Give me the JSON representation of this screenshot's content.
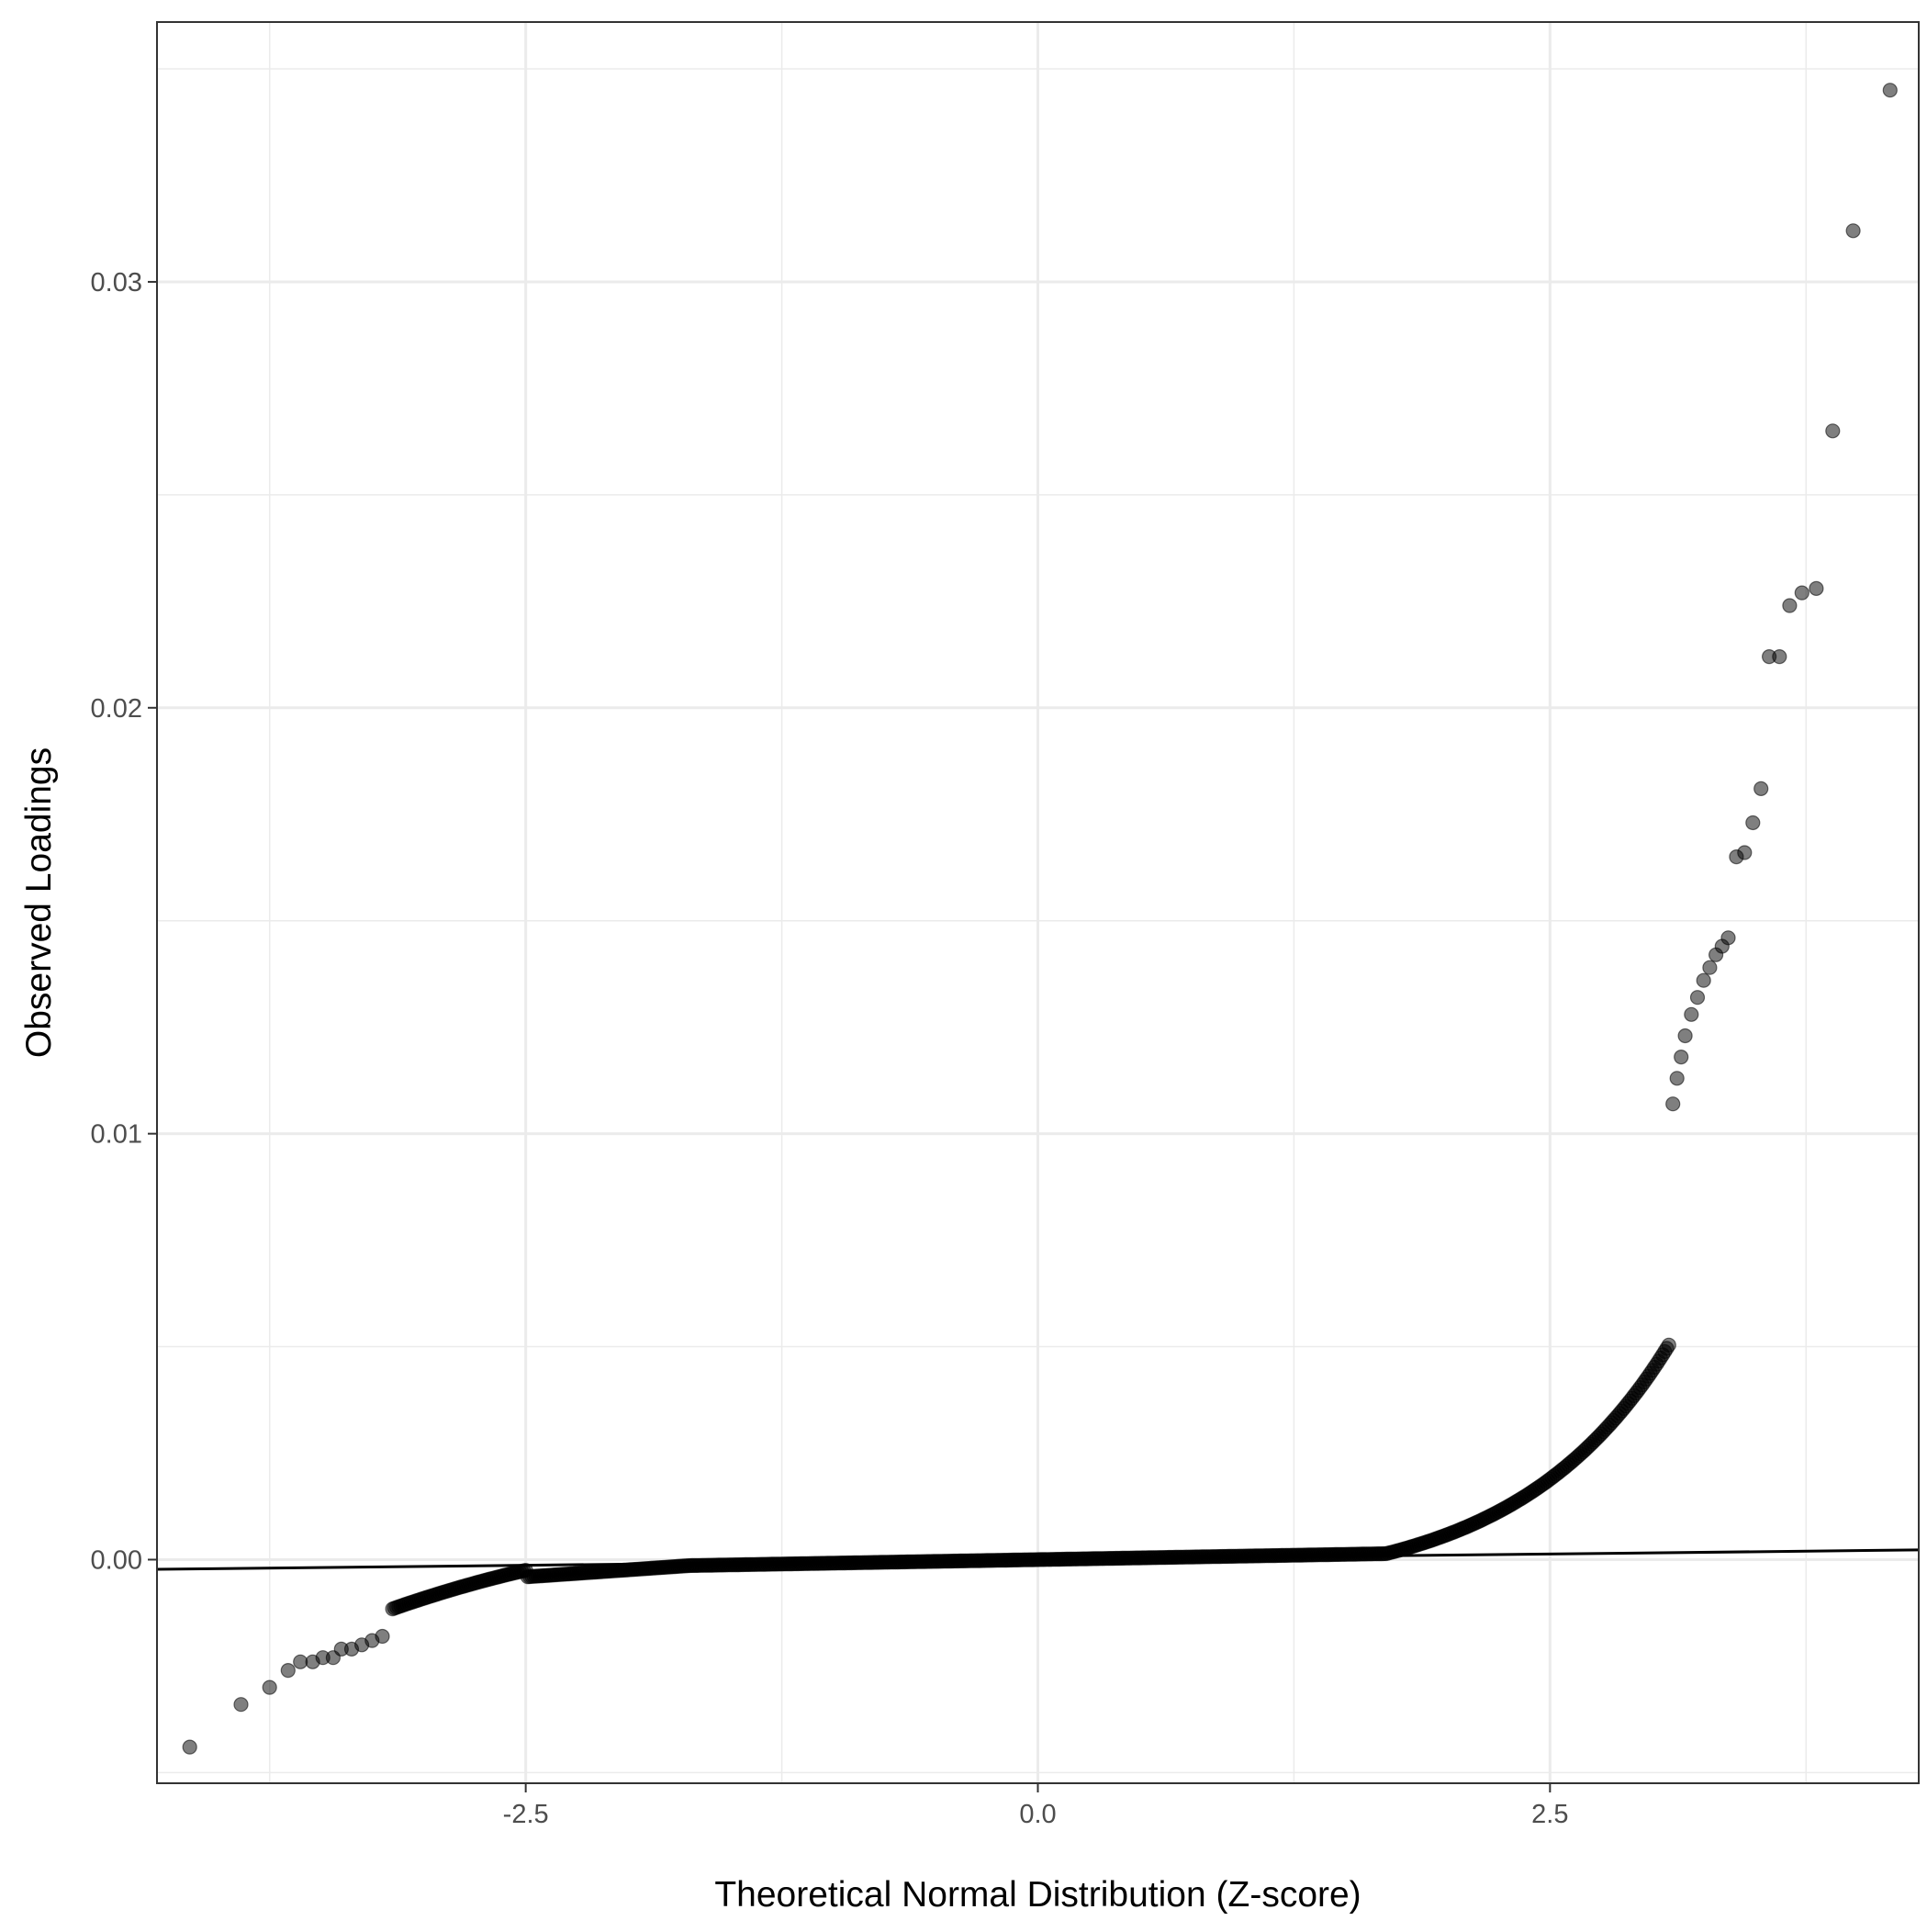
{
  "chart_data": {
    "type": "scatter",
    "title": "",
    "xlabel": "Theoretical Normal Distribution (Z-score)",
    "ylabel": "Observed Loadings",
    "xlim": [
      -4.3,
      4.3
    ],
    "ylim": [
      -0.00525,
      0.0361
    ],
    "x_ticks": [
      -2.5,
      0.0,
      2.5
    ],
    "x_tick_labels": [
      "-2.5",
      "0.0",
      "2.5"
    ],
    "y_ticks": [
      0.0,
      0.01,
      0.02,
      0.03
    ],
    "y_tick_labels": [
      "0.00",
      "0.01",
      "0.02",
      "0.03"
    ],
    "grid": true,
    "theme": "bw",
    "point_color": "#000000",
    "point_opacity": 0.5,
    "line_color": "#000000",
    "reference_line": {
      "intercept": 0.0,
      "slope": 5.3e-05
    },
    "tail_points": [
      {
        "x": -4.14,
        "y": -0.0044
      },
      {
        "x": -3.89,
        "y": -0.0034
      },
      {
        "x": -3.75,
        "y": -0.003
      },
      {
        "x": -3.66,
        "y": -0.0026
      },
      {
        "x": -3.6,
        "y": -0.0024
      },
      {
        "x": -3.54,
        "y": -0.0024
      },
      {
        "x": -3.49,
        "y": -0.0023
      },
      {
        "x": -3.44,
        "y": -0.0023
      },
      {
        "x": -3.4,
        "y": -0.0021
      },
      {
        "x": -3.35,
        "y": -0.0021
      },
      {
        "x": -3.3,
        "y": -0.002
      },
      {
        "x": -3.25,
        "y": -0.0019
      },
      {
        "x": -3.2,
        "y": -0.0018
      },
      {
        "x": 3.1,
        "y": 0.0107
      },
      {
        "x": 3.12,
        "y": 0.0113
      },
      {
        "x": 3.14,
        "y": 0.0118
      },
      {
        "x": 3.16,
        "y": 0.0123
      },
      {
        "x": 3.19,
        "y": 0.0128
      },
      {
        "x": 3.22,
        "y": 0.0132
      },
      {
        "x": 3.25,
        "y": 0.0136
      },
      {
        "x": 3.28,
        "y": 0.0139
      },
      {
        "x": 3.31,
        "y": 0.0142
      },
      {
        "x": 3.34,
        "y": 0.0144
      },
      {
        "x": 3.37,
        "y": 0.0146
      },
      {
        "x": 3.41,
        "y": 0.0165
      },
      {
        "x": 3.45,
        "y": 0.0166
      },
      {
        "x": 3.49,
        "y": 0.0173
      },
      {
        "x": 3.53,
        "y": 0.0181
      },
      {
        "x": 3.57,
        "y": 0.0212
      },
      {
        "x": 3.62,
        "y": 0.0212
      },
      {
        "x": 3.67,
        "y": 0.0224
      },
      {
        "x": 3.73,
        "y": 0.0227
      },
      {
        "x": 3.8,
        "y": 0.0228
      },
      {
        "x": 3.88,
        "y": 0.0265
      },
      {
        "x": 3.98,
        "y": 0.0312
      },
      {
        "x": 4.16,
        "y": 0.0345
      }
    ]
  }
}
